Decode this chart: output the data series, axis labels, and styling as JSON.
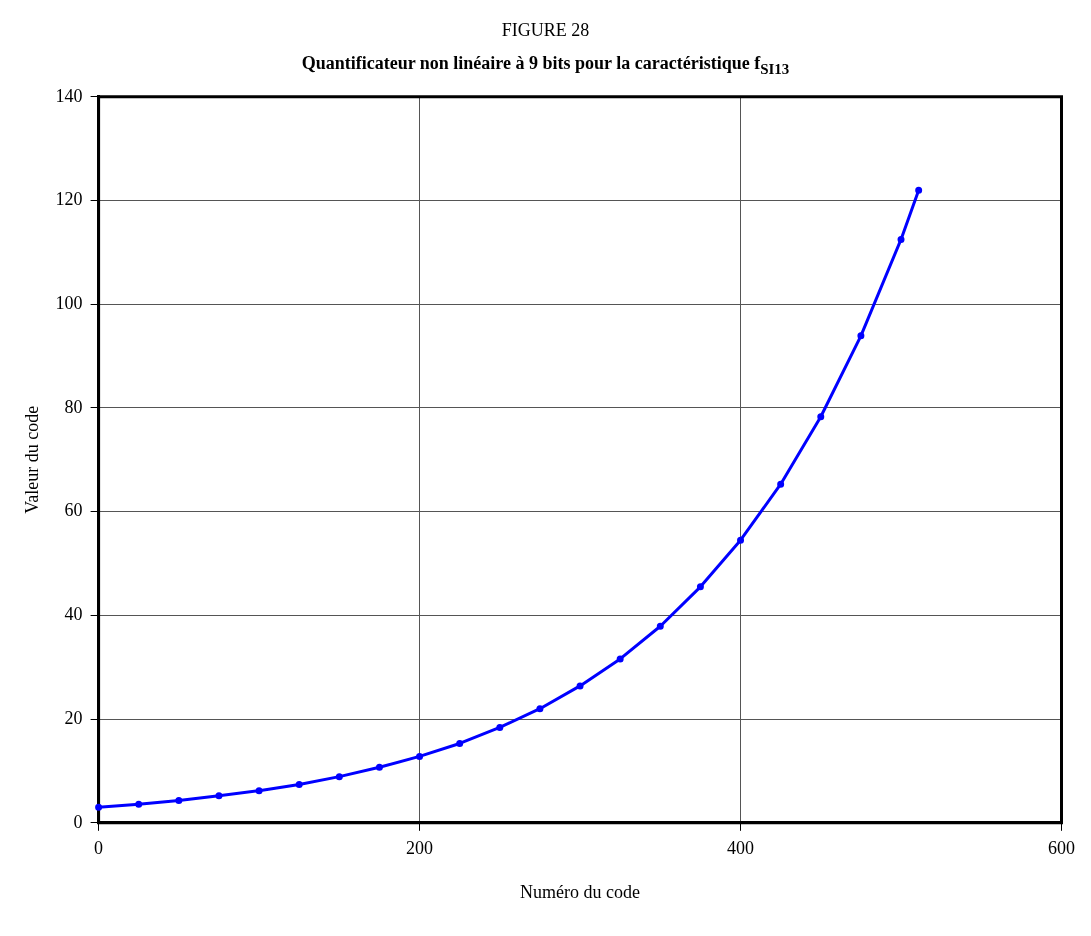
{
  "chart_data": {
    "type": "line",
    "title": "FIGURE 28",
    "subtitle": "Quantificateur non linéaire à 9 bits pour la caractéristique f$_{SI13}$",
    "xlabel": "Numéro du code",
    "ylabel": "Valeur du code",
    "x": [
      0,
      25,
      50,
      75,
      100,
      125,
      150,
      175,
      200,
      225,
      250,
      275,
      300,
      325,
      350,
      375,
      400,
      425,
      450,
      475,
      500,
      511
    ],
    "series": [
      {
        "color": "#0000ff",
        "values": [
          3.0,
          3.6,
          4.3,
          5.2,
          6.2,
          7.4,
          8.9,
          10.7,
          12.8,
          15.3,
          18.4,
          22.0,
          26.4,
          31.6,
          37.9,
          45.5,
          54.5,
          65.3,
          78.3,
          93.9,
          112.5,
          122
        ]
      }
    ],
    "xlim": [
      0,
      600
    ],
    "xticks": [
      0,
      200,
      400,
      600
    ],
    "ylim": [
      0,
      140
    ],
    "yticks": [
      0,
      20,
      40,
      60,
      80,
      100,
      120,
      140
    ],
    "grid": true,
    "legend": false,
    "marker": "circle",
    "line_style": "solid"
  }
}
